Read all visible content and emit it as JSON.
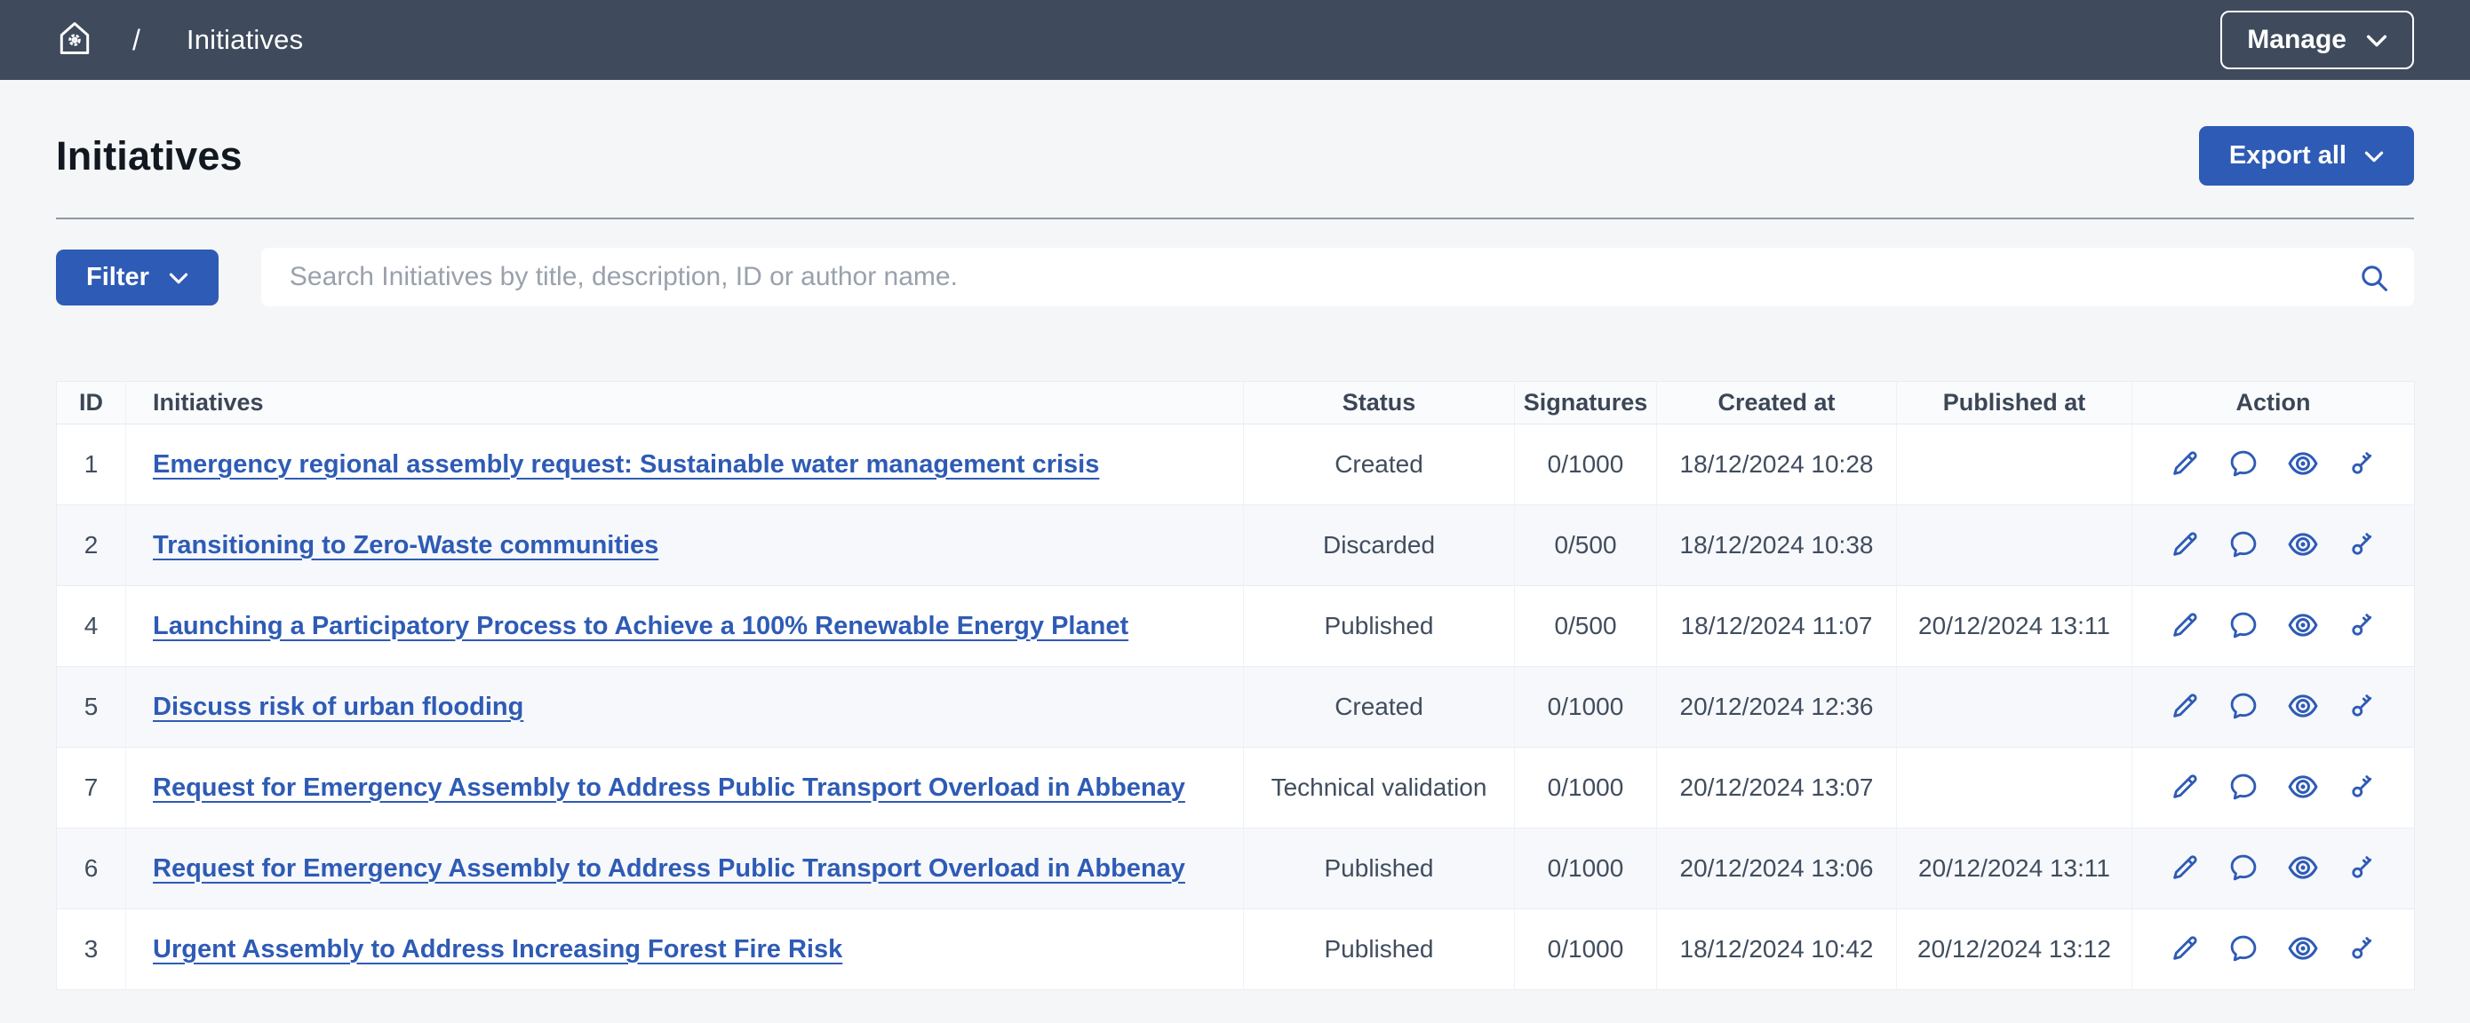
{
  "topbar": {
    "breadcrumb_separator": "/",
    "breadcrumb": "Initiatives",
    "manage_label": "Manage"
  },
  "page": {
    "title": "Initiatives",
    "export_label": "Export all"
  },
  "filter": {
    "label": "Filter",
    "search_placeholder": "Search Initiatives by title, description, ID or author name."
  },
  "table": {
    "headers": [
      "ID",
      "Initiatives",
      "Status",
      "Signatures",
      "Created at",
      "Published at",
      "Action"
    ],
    "action_icons": [
      "pencil-icon",
      "chat-bubble-icon",
      "eye-icon",
      "key-icon"
    ],
    "rows": [
      {
        "id": "1",
        "title": "Emergency regional assembly request: Sustainable water management crisis",
        "status": "Created",
        "signatures": "0/1000",
        "created_at": "18/12/2024 10:28",
        "published_at": ""
      },
      {
        "id": "2",
        "title": "Transitioning to Zero-Waste communities",
        "status": "Discarded",
        "signatures": "0/500",
        "created_at": "18/12/2024 10:38",
        "published_at": ""
      },
      {
        "id": "4",
        "title": "Launching a Participatory Process to Achieve a 100% Renewable Energy Planet",
        "status": "Published",
        "signatures": "0/500",
        "created_at": "18/12/2024 11:07",
        "published_at": "20/12/2024 13:11"
      },
      {
        "id": "5",
        "title": "Discuss risk of urban flooding",
        "status": "Created",
        "signatures": "0/1000",
        "created_at": "20/12/2024 12:36",
        "published_at": ""
      },
      {
        "id": "7",
        "title": "Request for Emergency Assembly to Address Public Transport Overload in Abbenay",
        "status": "Technical validation",
        "signatures": "0/1000",
        "created_at": "20/12/2024 13:07",
        "published_at": ""
      },
      {
        "id": "6",
        "title": "Request for Emergency Assembly to Address Public Transport Overload in Abbenay",
        "status": "Published",
        "signatures": "0/1000",
        "created_at": "20/12/2024 13:06",
        "published_at": "20/12/2024 13:11"
      },
      {
        "id": "3",
        "title": "Urgent Assembly to Address Increasing Forest Fire Risk",
        "status": "Published",
        "signatures": "0/1000",
        "created_at": "18/12/2024 10:42",
        "published_at": "20/12/2024 13:12"
      }
    ]
  },
  "colors": {
    "primary": "#2e5bb5",
    "topbar_bg": "#3f4b5c",
    "link": "#2e5bb5"
  }
}
